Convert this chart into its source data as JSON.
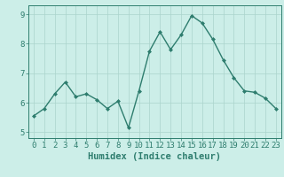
{
  "title": "",
  "xlabel": "Humidex (Indice chaleur)",
  "ylabel": "",
  "x_values": [
    0,
    1,
    2,
    3,
    4,
    5,
    6,
    7,
    8,
    9,
    10,
    11,
    12,
    13,
    14,
    15,
    16,
    17,
    18,
    19,
    20,
    21,
    22,
    23
  ],
  "y_values": [
    5.55,
    5.8,
    6.3,
    6.7,
    6.2,
    6.3,
    6.1,
    5.8,
    6.05,
    5.15,
    6.4,
    7.75,
    8.4,
    7.8,
    8.3,
    8.95,
    8.7,
    8.15,
    7.45,
    6.85,
    6.4,
    6.35,
    6.15,
    5.8
  ],
  "line_color": "#2e7d6e",
  "marker": "D",
  "marker_size": 2.0,
  "line_width": 1.0,
  "bg_color": "#cceee8",
  "grid_color": "#aad4cc",
  "tick_color": "#2e7d6e",
  "label_color": "#2e7d6e",
  "ylim": [
    4.8,
    9.3
  ],
  "yticks": [
    5,
    6,
    7,
    8,
    9
  ],
  "xticks": [
    0,
    1,
    2,
    3,
    4,
    5,
    6,
    7,
    8,
    9,
    10,
    11,
    12,
    13,
    14,
    15,
    16,
    17,
    18,
    19,
    20,
    21,
    22,
    23
  ],
  "tick_fontsize": 6.5,
  "xlabel_fontsize": 7.5
}
